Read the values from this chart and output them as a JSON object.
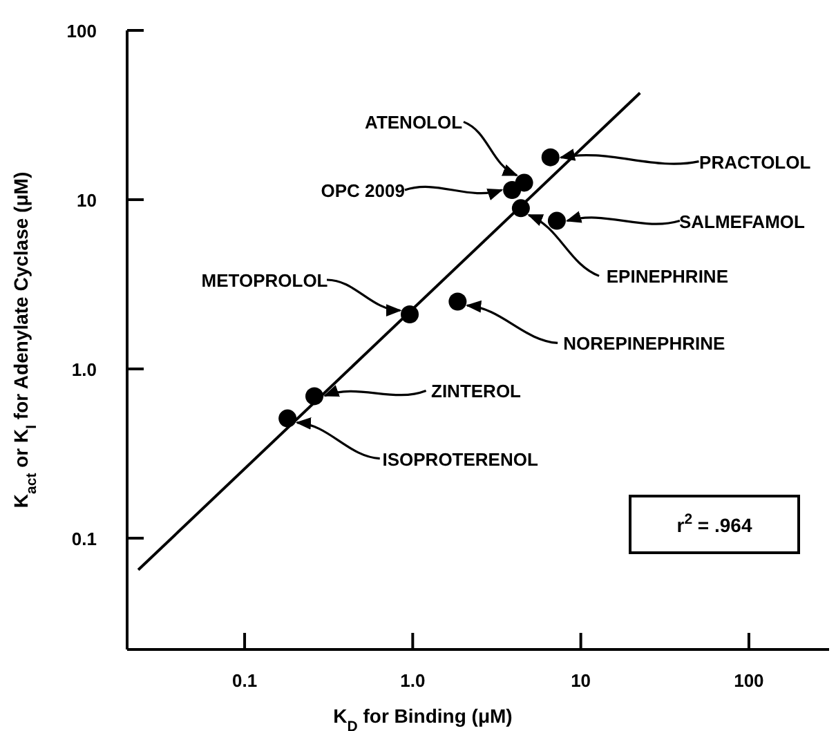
{
  "chart_data": {
    "type": "scatter",
    "xlabel": "K$_{D}$ for Binding (μM)",
    "ylabel": "K$_{act}$ or K$_{I}$ for Adenylate Cyclase (μM)",
    "x": [
      6.6,
      4.6,
      3.9,
      4.4,
      7.2,
      0.96,
      1.85,
      0.26,
      0.18
    ],
    "series": [
      {
        "color": "#000000",
        "marker": "circle",
        "values": [
          17.8,
          12.6,
          11.4,
          8.9,
          7.5,
          2.1,
          2.5,
          0.69,
          0.51
        ]
      },
      {
        "type": "line",
        "color": "#000000",
        "x": [
          0.0233,
          22.5
        ],
        "values": [
          0.065,
          42.7
        ]
      }
    ],
    "annotations": [
      {
        "text": "PRACTOLOL",
        "x": 6.6,
        "y": 17.8
      },
      {
        "text": "ATENOLOL",
        "x": 4.6,
        "y": 12.6
      },
      {
        "text": "OPC 2009",
        "x": 3.9,
        "y": 11.4
      },
      {
        "text": "EPINEPHRINE",
        "x": 4.4,
        "y": 8.9
      },
      {
        "text": "SALMEFAMOL",
        "x": 7.2,
        "y": 7.5
      },
      {
        "text": "METOPROLOL",
        "x": 0.96,
        "y": 2.1
      },
      {
        "text": "NOREPINEPHRINE",
        "x": 1.85,
        "y": 2.5
      },
      {
        "text": "ZINTEROL",
        "x": 0.26,
        "y": 0.69
      },
      {
        "text": "ISOPROTERENOL",
        "x": 0.18,
        "y": 0.51
      },
      "r$^{2}$ = .964"
    ],
    "log": "xy",
    "grid": false,
    "xlim": [
      0.02,
      300
    ],
    "ylim": [
      0.022,
      100
    ],
    "xticks": [
      0.1,
      {
        "value": 1,
        "label": "1.0"
      },
      10,
      100
    ],
    "yticks": [
      0.1,
      {
        "value": 1,
        "label": "1.0"
      },
      10,
      100
    ]
  }
}
